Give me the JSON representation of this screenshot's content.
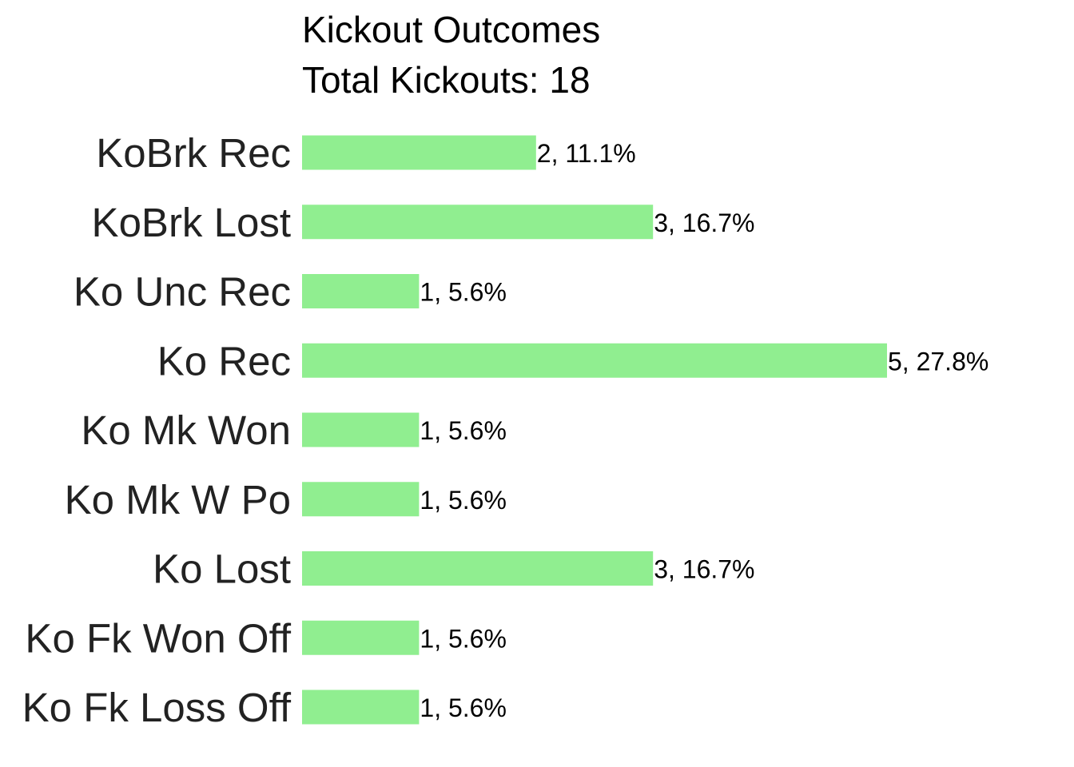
{
  "chart_data": {
    "type": "bar",
    "orientation": "horizontal",
    "title": "Kickout Outcomes",
    "subtitle": "Total Kickouts: 18",
    "categories": [
      "KoBrk Rec",
      "KoBrk Lost",
      "Ko Unc Rec",
      "Ko Rec",
      "Ko Mk Won",
      "Ko Mk W Po",
      "Ko Lost",
      "Ko Fk Won Off",
      "Ko Fk Loss Off"
    ],
    "values": [
      2,
      3,
      1,
      5,
      1,
      1,
      3,
      1,
      1
    ],
    "data_labels": [
      "2, 11.1%",
      "3, 16.7%",
      "1, 5.6%",
      "5, 27.8%",
      "1, 5.6%",
      "1, 5.6%",
      "3, 16.7%",
      "1, 5.6%",
      "1, 5.6%"
    ],
    "bar_color": "#90EE90",
    "xlim": [
      0,
      5
    ],
    "xlabel": "",
    "ylabel": "",
    "grid": false,
    "legend": "none"
  }
}
